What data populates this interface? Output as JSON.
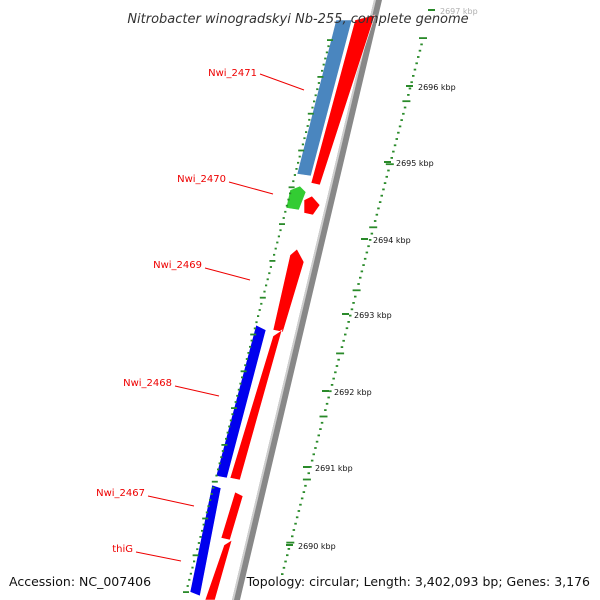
{
  "title": "Nitrobacter winogradskyi Nb-255, complete genome",
  "footer": {
    "accession": "Accession: NC_007406",
    "summary": "Topology: circular; Length: 3,402,093 bp; Genes: 3,176"
  },
  "scale_labels": [
    "2690 kbp",
    "2691 kbp",
    "2692 kbp",
    "2693 kbp",
    "2694 kbp",
    "2695 kbp",
    "2696 kbp",
    "2697 kbp"
  ],
  "genes": [
    {
      "label": "Nwi_2471",
      "strand": "-",
      "color": "#4a86bf"
    },
    {
      "label": "Nwi_2470",
      "strand": "-",
      "color": "#33cc33"
    },
    {
      "label": "Nwi_2469",
      "strand": "+",
      "color": "#ff0000"
    },
    {
      "label": "Nwi_2468",
      "strand": "-",
      "color": "#0000ee"
    },
    {
      "label": "Nwi_2467",
      "strand": "+",
      "color": "#ff0000"
    },
    {
      "label": "thiG",
      "strand": "-",
      "color": "#0000ee"
    }
  ],
  "colors": {
    "plus_strand_track": "#ff0000",
    "tick": "#2a8a2a",
    "backbone": "#888888",
    "label": "#ee0000"
  }
}
